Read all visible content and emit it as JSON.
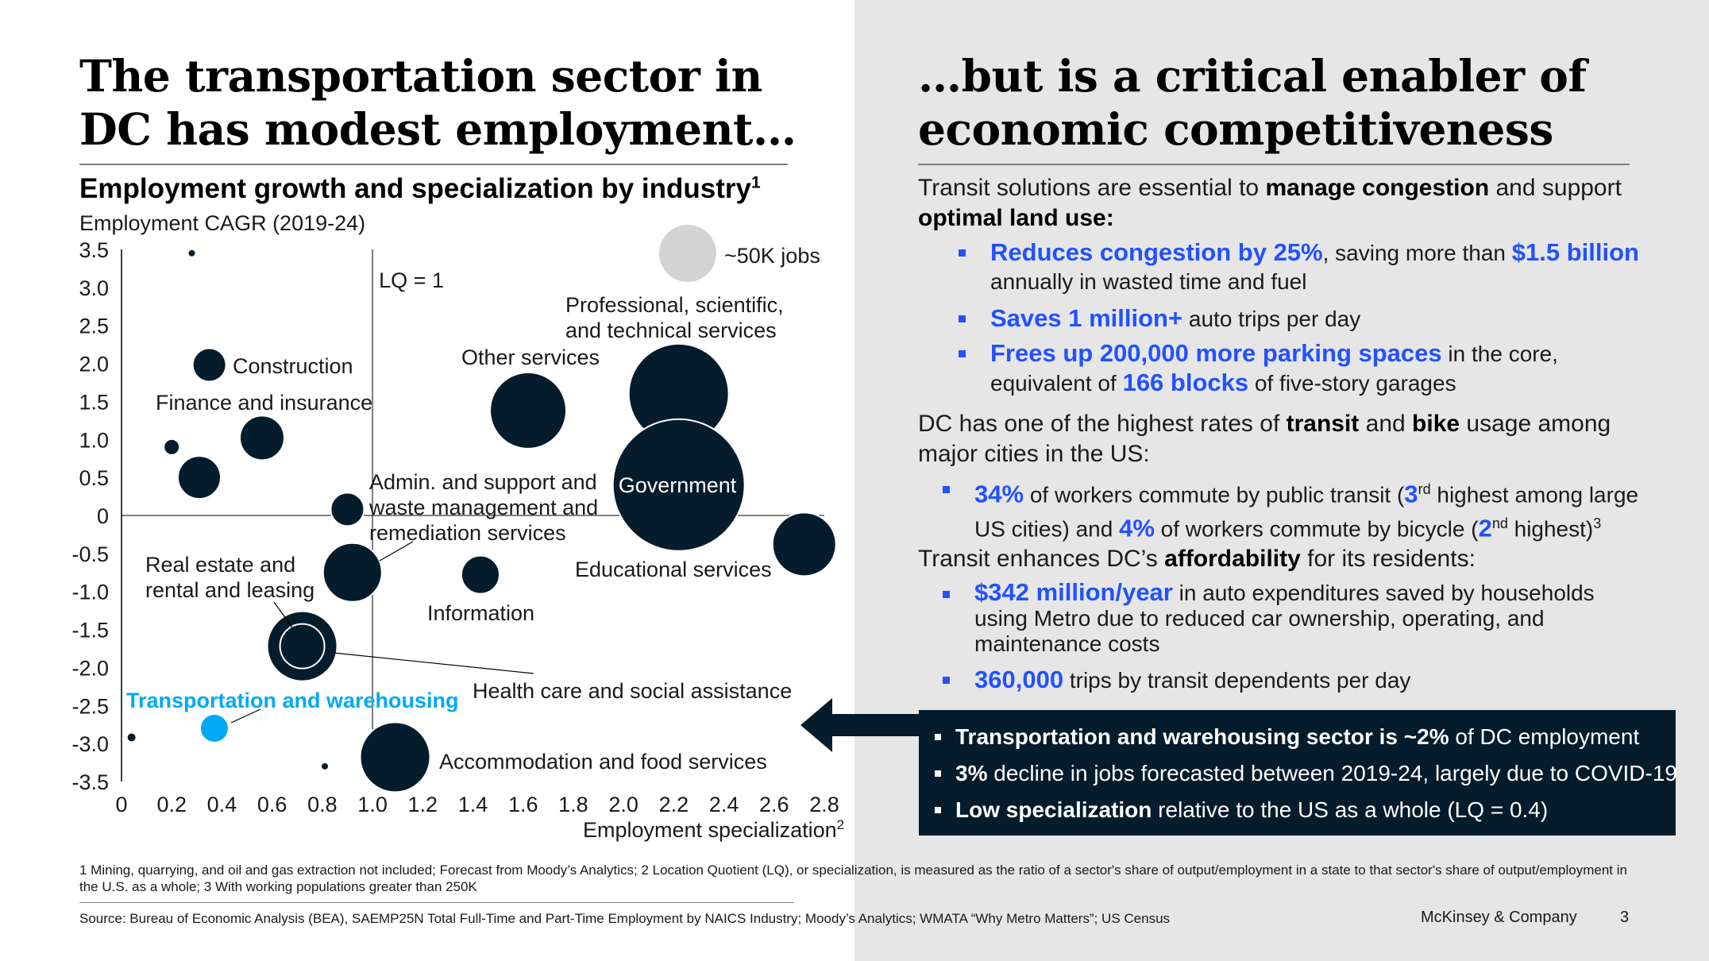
{
  "left": {
    "headline": "The transportation sector in DC has modest employment…"
  },
  "right": {
    "headline": "…but is a critical enabler of economic competitiveness",
    "section1": {
      "intro_a": "Transit solutions are essential to ",
      "intro_b": "manage congestion",
      "intro_c": " and support ",
      "intro_d": "optimal land use:",
      "bullets": [
        {
          "h1": "Reduces congestion by 25%",
          "t1": ", saving more than ",
          "h2": "$1.5 billion",
          "t2": " annually in wasted time and fuel"
        },
        {
          "h1": "Saves 1 million+",
          "t1": " auto trips per day"
        },
        {
          "h1": "Frees up 200,000 more parking spaces",
          "t1": " in the core, equivalent of ",
          "h2": "166 blocks",
          "t2": " of five-story garages"
        }
      ]
    },
    "section2": {
      "intro_a": "DC has one of the highest rates of ",
      "intro_b": "transit",
      "intro_c": " and ",
      "intro_d": "bike",
      "intro_e": " usage among major cities in the US:",
      "bullet": {
        "h1": "34%",
        "t1": " of workers commute by public transit (",
        "h2": "3",
        "s2": "rd",
        "t2": " highest among large US cities) and ",
        "h3": "4%",
        "t3": " of workers commute by bicycle (",
        "h4": "2",
        "s4": "nd",
        "t4": " highest)",
        "fn": "3"
      }
    },
    "section3": {
      "intro_a": "Transit enhances DC’s ",
      "intro_b": "affordability",
      "intro_c": " for its residents:",
      "bullets": [
        {
          "h1": "$342 million/year",
          "t1": " in auto expenditures saved by households using Metro due to reduced car ownership, operating, and maintenance costs"
        },
        {
          "h1": "360,000",
          "t1": " trips by transit dependents per day"
        }
      ]
    },
    "callout": [
      {
        "bold": "Transportation and warehousing sector is ~2%",
        "rest": " of DC employment"
      },
      {
        "bold": "3%",
        "rest": " decline in jobs forecasted between 2019-24, largely due to COVID-19"
      },
      {
        "bold": "Low specialization",
        "rest": " relative to the US as a whole (LQ = 0.4)"
      }
    ]
  },
  "footnotes": {
    "note1": "1  Mining, quarrying, and oil and gas extraction not included; Forecast from Moody’s Analytics;    2 Location Quotient (LQ), or specialization, is measured as the ratio of a sector's share of output/employment in a state to that sector's share of output/employment in the U.S. as a whole;   3  With working populations greater than 250K",
    "source": "Source: Bureau of Economic Analysis (BEA), SAEMP25N Total Full-Time and Part-Time Employment by NAICS Industry; Moody’s Analytics; WMATA “Why Metro Matters”; US Census",
    "brand": "McKinsey & Company",
    "page": "3"
  },
  "chart_data": {
    "type": "scatter",
    "title": "Employment growth and specialization by industry",
    "title_footnote": "1",
    "ylabel": "Employment CAGR (2019-24)",
    "xlabel": "Employment specialization",
    "xlabel_footnote": "2",
    "xlim": [
      0,
      2.8
    ],
    "ylim": [
      -3.5,
      3.5
    ],
    "xticks": [
      "0",
      "0.2",
      "0.4",
      "0.6",
      "0.8",
      "1.0",
      "1.2",
      "1.4",
      "1.6",
      "1.8",
      "2.0",
      "2.2",
      "2.4",
      "2.6",
      "2.8"
    ],
    "yticks": [
      "3.5",
      "3.0",
      "2.5",
      "2.0",
      "1.5",
      "1.0",
      "0.5",
      "0",
      "-0.5",
      "-1.0",
      "-1.5",
      "-2.0",
      "-2.5",
      "-3.0",
      "-3.5"
    ],
    "reference_line_label": "LQ = 1",
    "size_legend_label": "~50K jobs",
    "colors": {
      "bubble": "#051c2c",
      "highlight": "#00a9f4",
      "legend": "#d3d3d3"
    },
    "points": [
      {
        "label": "",
        "x": 0.28,
        "y": 3.45,
        "r": 5
      },
      {
        "label": "Construction",
        "x": 0.35,
        "y": 1.98,
        "r": 21
      },
      {
        "label": "Finance and insurance",
        "x": 0.56,
        "y": 1.02,
        "r": 28
      },
      {
        "label": "",
        "x": 0.2,
        "y": 0.9,
        "r": 10
      },
      {
        "label": "",
        "x": 0.31,
        "y": 0.5,
        "r": 27
      },
      {
        "label": "Admin. and support and waste management and remediation services",
        "x": 0.9,
        "y": 0.08,
        "r": 21
      },
      {
        "label": "Other services",
        "x": 1.62,
        "y": 1.38,
        "r": 48
      },
      {
        "label": "Professional, scientific, and technical services",
        "x": 2.22,
        "y": 1.6,
        "r": 63
      },
      {
        "label": "Government",
        "x": 2.22,
        "y": 0.4,
        "r": 83
      },
      {
        "label": "Educational services",
        "x": 2.72,
        "y": -0.38,
        "r": 40
      },
      {
        "label": "Real estate and rental and leasing",
        "x": 0.92,
        "y": -0.75,
        "r": 37
      },
      {
        "label": "Information",
        "x": 1.43,
        "y": -0.78,
        "r": 24
      },
      {
        "label": "Health care and social assistance",
        "x": 0.72,
        "y": -1.72,
        "r": 44
      },
      {
        "label": "Transportation and warehousing",
        "x": 0.37,
        "y": -2.8,
        "r": 18,
        "highlight": true
      },
      {
        "label": "",
        "x": 0.04,
        "y": -2.92,
        "r": 6
      },
      {
        "label": "",
        "x": 0.81,
        "y": -3.3,
        "r": 5
      },
      {
        "label": "Accommodation and food services",
        "x": 1.09,
        "y": -3.18,
        "r": 44
      }
    ]
  }
}
